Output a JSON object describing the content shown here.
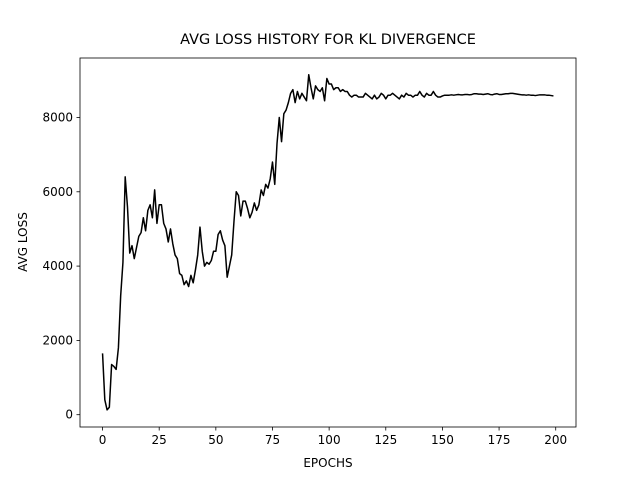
{
  "chart_data": {
    "type": "line",
    "title": "AVG LOSS HISTORY FOR KL DIVERGENCE",
    "x_label": "EPOCHS",
    "y_label": "AVG LOSS",
    "color": "#000000",
    "x": [
      0,
      1,
      2,
      3,
      4,
      5,
      6,
      7,
      8,
      9,
      10,
      11,
      12,
      13,
      14,
      15,
      16,
      17,
      18,
      19,
      20,
      21,
      22,
      23,
      24,
      25,
      26,
      27,
      28,
      29,
      30,
      31,
      32,
      33,
      34,
      35,
      36,
      37,
      38,
      39,
      40,
      41,
      42,
      43,
      44,
      45,
      46,
      47,
      48,
      49,
      50,
      51,
      52,
      53,
      54,
      55,
      56,
      57,
      58,
      59,
      60,
      61,
      62,
      63,
      64,
      65,
      66,
      67,
      68,
      69,
      70,
      71,
      72,
      73,
      74,
      75,
      76,
      77,
      78,
      79,
      80,
      81,
      82,
      83,
      84,
      85,
      86,
      87,
      88,
      89,
      90,
      91,
      92,
      93,
      94,
      95,
      96,
      97,
      98,
      99,
      100,
      101,
      102,
      103,
      104,
      105,
      106,
      107,
      108,
      109,
      110,
      111,
      112,
      113,
      114,
      115,
      116,
      117,
      118,
      119,
      120,
      121,
      122,
      123,
      124,
      125,
      126,
      127,
      128,
      129,
      130,
      131,
      132,
      133,
      134,
      135,
      136,
      137,
      138,
      139,
      140,
      141,
      142,
      143,
      144,
      145,
      146,
      147,
      148,
      149,
      150,
      151,
      152,
      153,
      154,
      155,
      156,
      157,
      158,
      159,
      160,
      161,
      162,
      163,
      164,
      165,
      166,
      167,
      168,
      169,
      170,
      171,
      172,
      173,
      174,
      175,
      176,
      177,
      178,
      179,
      180,
      181,
      182,
      183,
      184,
      185,
      186,
      187,
      188,
      189,
      190,
      191,
      192,
      193,
      194,
      195,
      196,
      197,
      198,
      199
    ],
    "values": [
      1650,
      400,
      130,
      200,
      1350,
      1300,
      1220,
      1800,
      3200,
      4100,
      6400,
      5600,
      4350,
      4550,
      4200,
      4500,
      4800,
      4900,
      5300,
      4950,
      5500,
      5650,
      5300,
      6050,
      5150,
      5650,
      5650,
      5150,
      5000,
      4650,
      5000,
      4600,
      4300,
      4200,
      3800,
      3750,
      3500,
      3600,
      3450,
      3750,
      3550,
      3900,
      4300,
      5050,
      4400,
      4000,
      4100,
      4050,
      4150,
      4400,
      4400,
      4850,
      4950,
      4700,
      4550,
      3700,
      4000,
      4300,
      5200,
      6000,
      5900,
      5350,
      5750,
      5750,
      5550,
      5300,
      5450,
      5700,
      5500,
      5650,
      6050,
      5900,
      6200,
      6100,
      6350,
      6800,
      6200,
      7300,
      8000,
      7350,
      8100,
      8200,
      8400,
      8650,
      8750,
      8400,
      8700,
      8500,
      8650,
      8550,
      8450,
      9150,
      8800,
      8500,
      8850,
      8750,
      8700,
      8800,
      8450,
      9050,
      8900,
      8900,
      8750,
      8800,
      8800,
      8700,
      8750,
      8700,
      8700,
      8600,
      8550,
      8600,
      8600,
      8550,
      8550,
      8550,
      8650,
      8600,
      8550,
      8500,
      8600,
      8500,
      8550,
      8650,
      8600,
      8500,
      8600,
      8600,
      8650,
      8600,
      8550,
      8500,
      8600,
      8550,
      8650,
      8600,
      8600,
      8550,
      8600,
      8600,
      8700,
      8600,
      8550,
      8650,
      8600,
      8600,
      8700,
      8600,
      8550,
      8550,
      8580,
      8600,
      8600,
      8600,
      8610,
      8600,
      8610,
      8620,
      8610,
      8610,
      8620,
      8620,
      8610,
      8620,
      8640,
      8640,
      8630,
      8630,
      8620,
      8630,
      8640,
      8620,
      8610,
      8630,
      8640,
      8620,
      8620,
      8630,
      8640,
      8640,
      8650,
      8650,
      8640,
      8630,
      8620,
      8610,
      8610,
      8600,
      8610,
      8600,
      8600,
      8590,
      8600,
      8610,
      8610,
      8610,
      8600,
      8600,
      8590,
      8580
    ],
    "xlim": [
      -9.95,
      208.95
    ],
    "xticks": [
      0,
      25,
      50,
      75,
      100,
      125,
      150,
      175,
      200
    ],
    "ylim": [
      -331,
      9601
    ],
    "yticks": [
      0,
      2000,
      4000,
      6000,
      8000
    ],
    "grid": false
  }
}
